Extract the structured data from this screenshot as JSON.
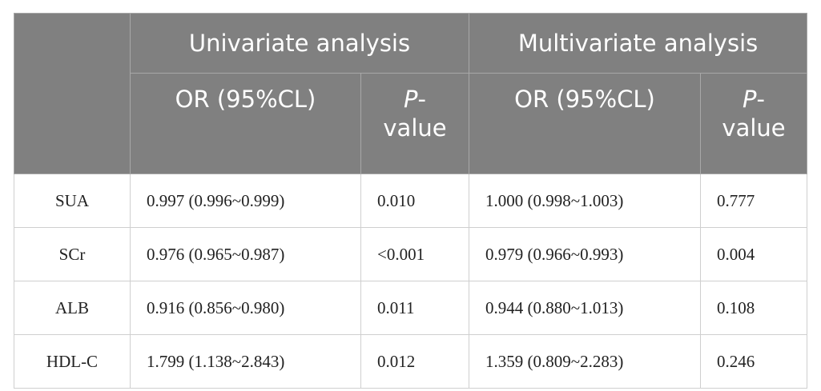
{
  "headers": {
    "group1": "Univariate analysis",
    "group2": "Multivariate analysis",
    "or_label": "OR (95%CL)",
    "p_letter": "P",
    "p_rest": "-",
    "p_value": "value"
  },
  "rows": [
    {
      "var": "SUA",
      "u_or": "0.997 (0.996~0.999)",
      "u_p": "0.010",
      "m_or": "1.000 (0.998~1.003)",
      "m_p": "0.777"
    },
    {
      "var": "SCr",
      "u_or": "0.976 (0.965~0.987)",
      "u_p": "<0.001",
      "m_or": "0.979 (0.966~0.993)",
      "m_p": "0.004"
    },
    {
      "var": "ALB",
      "u_or": "0.916 (0.856~0.980)",
      "u_p": "0.011",
      "m_or": "0.944 (0.880~1.013)",
      "m_p": "0.108"
    },
    {
      "var": "HDL-C",
      "u_or": "1.799 (1.138~2.843)",
      "u_p": "0.012",
      "m_or": "1.359 (0.809~2.283)",
      "m_p": "0.246"
    }
  ]
}
